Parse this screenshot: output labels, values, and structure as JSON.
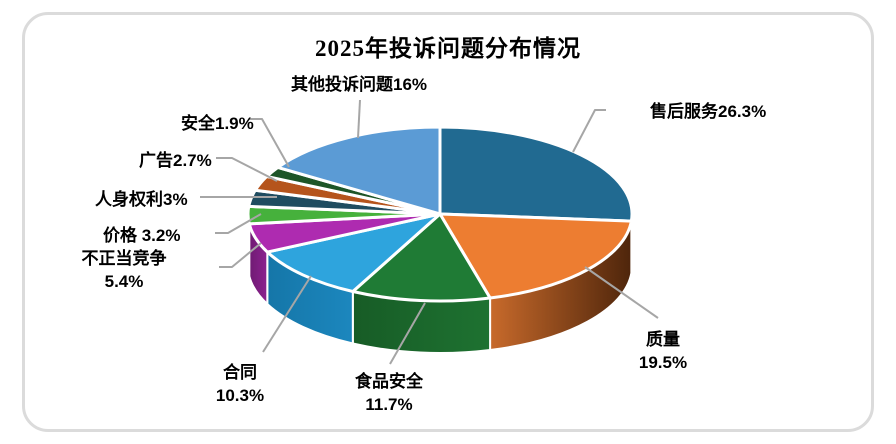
{
  "page": {
    "title": "2025年投诉问题分布情况"
  },
  "frame": {
    "border_color": "#DBDBDB",
    "background": "#FFFFFF"
  },
  "chart_data": {
    "type": "pie",
    "style": "3d-pie",
    "title": "2025年投诉问题分布情况",
    "unit": "%",
    "start_angle_deg": 0,
    "direction": "clockwise",
    "legend": "none",
    "label_color": "#000000",
    "leader_line_color": "#A6A6A6",
    "separator_color": "#FFFFFF",
    "slices": [
      {
        "name": "售后服务",
        "value": 26.3,
        "label1": "售后服务26.3%",
        "color": "#216A91",
        "side": "#14486B",
        "side2": "#0F3A58"
      },
      {
        "name": "质量",
        "value": 19.5,
        "label1": "质量",
        "label2": "19.5%",
        "color": "#ED7D31",
        "side": "#C86A2B",
        "side2": "#4E250B"
      },
      {
        "name": "食品安全",
        "value": 11.7,
        "label1": "食品安全",
        "label2": "11.7%",
        "color": "#1F7B35",
        "side": "#175C26",
        "side2": "#1E7231"
      },
      {
        "name": "合同",
        "value": 10.3,
        "label1": "合同",
        "label2": "10.3%",
        "color": "#2EA4DD",
        "side": "#1576A8",
        "side2": "#1C87BE"
      },
      {
        "name": "不正当竞争",
        "value": 5.4,
        "label1": "不正当竞争",
        "label2": "5.4%",
        "color": "#AE2BB0",
        "side": "#6F1B72",
        "side2": "#8C2190"
      },
      {
        "name": "价格",
        "value": 3.2,
        "label1": "价格 3.2%",
        "color": "#46B13C",
        "side": "#2E8430"
      },
      {
        "name": "人身权利",
        "value": 3.0,
        "label1": "人身权利3%",
        "color": "#1F4C60",
        "side": "#16384A"
      },
      {
        "name": "广告",
        "value": 2.7,
        "label1": "广告2.7%",
        "color": "#B5541C",
        "side": "#8A3F13"
      },
      {
        "name": "安全",
        "value": 1.9,
        "label1": "安全1.9%",
        "color": "#1D5527",
        "side": "#143D1C"
      },
      {
        "name": "其他投诉问题",
        "value": 16.0,
        "label1": "其他投诉问题16%",
        "color": "#5B9BD5",
        "side": "#3F7CB5"
      }
    ]
  }
}
